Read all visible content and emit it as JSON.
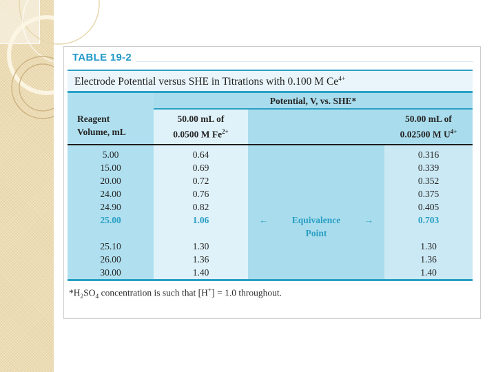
{
  "slide": {
    "table_label": "TABLE 19-2",
    "title": {
      "text": "Electrode Potential versus SHE in Titrations with 0.100 M Ce",
      "sup": "4+"
    },
    "potential_header": "Potential, V, vs. SHE*",
    "columns": {
      "reagent_line1": "Reagent",
      "reagent_line2": "Volume, mL",
      "fe_line1": "50.00 mL of",
      "fe_line2": "0.0500 M Fe",
      "fe_sup": "2+",
      "u_line1": "50.00 mL of",
      "u_line2": "0.02500 M U",
      "u_sup": "4+"
    },
    "rows": [
      {
        "volume": "5.00",
        "fe": "0.64",
        "u": "0.316"
      },
      {
        "volume": "15.00",
        "fe": "0.69",
        "u": "0.339"
      },
      {
        "volume": "20.00",
        "fe": "0.72",
        "u": "0.352"
      },
      {
        "volume": "24.00",
        "fe": "0.76",
        "u": "0.375"
      },
      {
        "volume": "24.90",
        "fe": "0.82",
        "u": "0.405"
      },
      {
        "volume": "25.00",
        "fe": "1.06",
        "u": "0.703",
        "highlight": true,
        "pad_after": true,
        "note": {
          "left_arrow": "←",
          "line1": "Equivalence",
          "line2": "Point",
          "right_arrow": "→"
        }
      },
      {
        "volume": "25.10",
        "fe": "1.30",
        "u": "1.30"
      },
      {
        "volume": "26.00",
        "fe": "1.36",
        "u": "1.36"
      },
      {
        "volume": "30.00",
        "fe": "1.40",
        "u": "1.40"
      }
    ],
    "footnote_segments": [
      {
        "t": "*H"
      },
      {
        "sub": "2"
      },
      {
        "t": "SO"
      },
      {
        "sub": "4"
      },
      {
        "t": " concentration is such that [H"
      },
      {
        "sup": "+"
      },
      {
        "t": "] = 1.0 throughout."
      }
    ],
    "colors": {
      "accent_teal": "#2AA0C5",
      "highlight_text": "#2A9FC5",
      "label_blue": "#2199C8",
      "title_band_bg": "#E9F5FB",
      "column_medium_bg": "#A9DCEC",
      "column1_bg": "#B0E0EF",
      "column2_bg": "#E0F2F9",
      "column4_bg": "#CBE9F4",
      "header_rule_black": "#1C1C1C",
      "sidebar_beige": "#ECDBB2"
    }
  }
}
